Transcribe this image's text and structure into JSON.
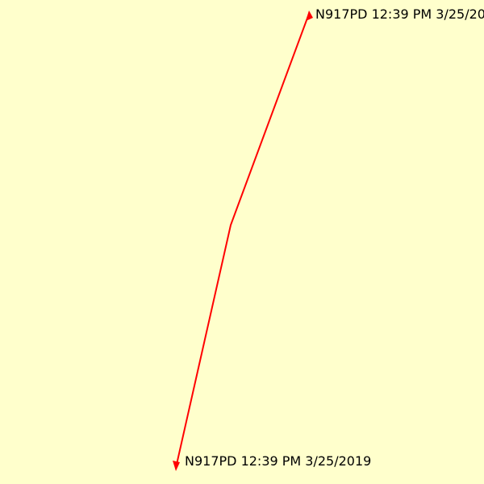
{
  "map": {
    "background_color": "#ffffcc",
    "track_color": "#ff0000",
    "label_color": "#000000",
    "track_start_label": "N917PD 12:39 PM 3/25/20",
    "track_end_label": "N917PD 12:39 PM 3/25/2019",
    "marker_icon": "triangle-arrow-icon"
  }
}
